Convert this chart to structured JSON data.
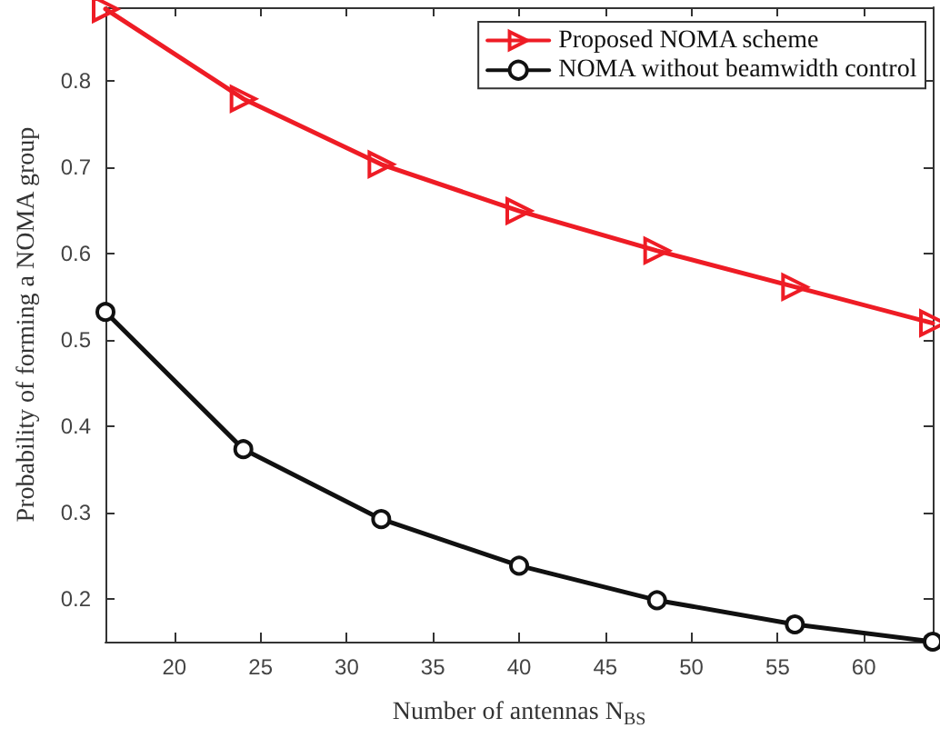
{
  "chart_data": {
    "type": "line",
    "xlabel": "Number of antennas N$_{BS}$",
    "ylabel": "Probability of forming a NOMA group",
    "x": [
      16,
      24,
      32,
      40,
      48,
      56,
      64
    ],
    "series": [
      {
        "name": "Proposed NOMA scheme",
        "color": "#ee1c25",
        "marker": "triangle",
        "values": [
          0.883,
          0.779,
          0.703,
          0.649,
          0.603,
          0.561,
          0.519
        ]
      },
      {
        "name": "NOMA without beamwidth control",
        "color": "#111111",
        "marker": "circle",
        "values": [
          0.532,
          0.373,
          0.292,
          0.238,
          0.198,
          0.17,
          0.15
        ]
      }
    ],
    "xlim": [
      16,
      64
    ],
    "xticks": [
      20,
      25,
      30,
      35,
      40,
      45,
      50,
      55,
      60
    ],
    "ylim": [
      0.15,
      0.885
    ],
    "yticks": [
      0.2,
      0.3,
      0.4,
      0.5,
      0.6,
      0.7,
      0.8
    ],
    "grid": false,
    "legend": "top right",
    "line_style": "solid"
  }
}
